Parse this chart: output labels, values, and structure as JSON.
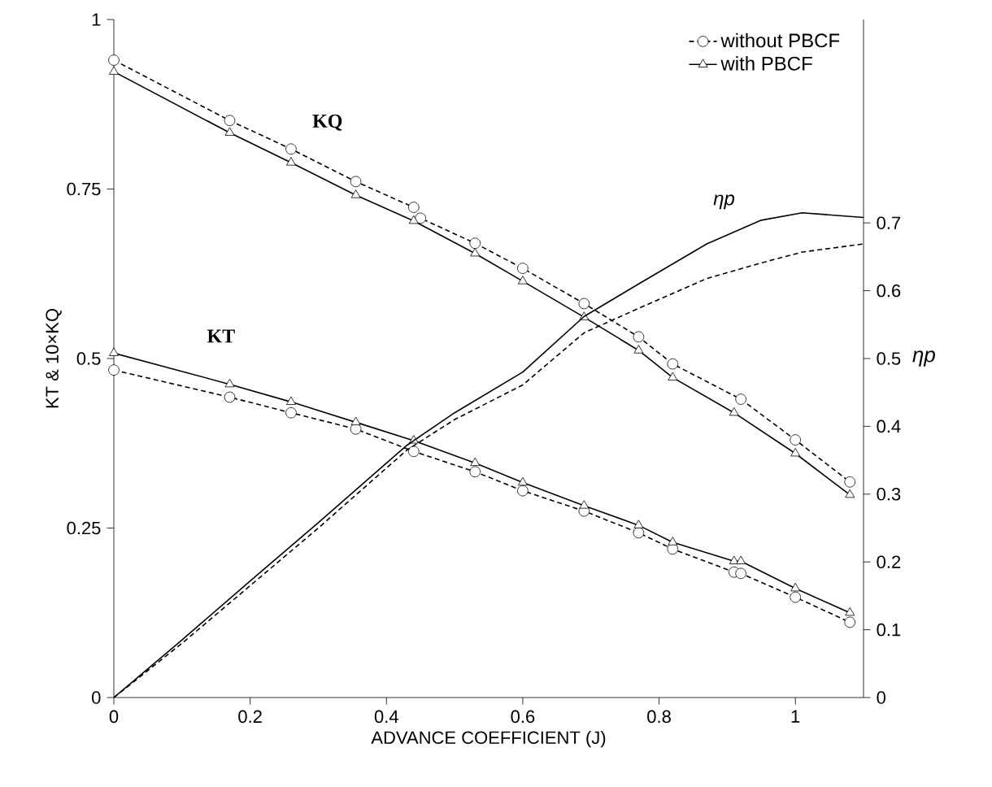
{
  "chart_data": {
    "type": "line",
    "xlabel": "ADVANCE COEFFICIENT (J)",
    "ylabel": "KT & 10×KQ",
    "y2label": "ηp",
    "xlim": [
      0,
      1.1
    ],
    "xticks": [
      0,
      0.2,
      0.4,
      0.6,
      0.8,
      1
    ],
    "ylim": [
      0,
      1
    ],
    "yticks": [
      0,
      0.25,
      0.5,
      0.75,
      1
    ],
    "y2lim": [
      0,
      1
    ],
    "y2ticks": [
      0,
      0.1,
      0.2,
      0.3,
      0.4,
      0.5,
      0.6,
      0.7
    ],
    "legend": "top right",
    "grid": false,
    "series": [
      {
        "name": "without PBCF",
        "color": "#000000",
        "marker": "circle",
        "line_style": "dashed",
        "x": [
          0,
          0.17,
          0.26,
          0.355,
          0.44,
          0.45,
          0.53,
          0.6,
          0.69,
          0.77,
          0.82,
          0.92,
          1.0,
          1.08
        ],
        "values": [
          0.94,
          0.851,
          0.809,
          0.761,
          0.723,
          0.707,
          0.67,
          0.633,
          0.581,
          0.532,
          0.492,
          0.44,
          0.38,
          0.318
        ]
      },
      {
        "name": "with PBCF",
        "color": "#000000",
        "marker": "triangle",
        "line_style": "solid",
        "x": [
          0,
          0.17,
          0.26,
          0.355,
          0.44,
          0.53,
          0.6,
          0.69,
          0.77,
          0.82,
          0.91,
          1.0,
          1.08
        ],
        "values": [
          0.923,
          0.833,
          0.789,
          0.741,
          0.703,
          0.655,
          0.614,
          0.561,
          0.512,
          0.472,
          0.42,
          0.36,
          0.299
        ]
      },
      {
        "color": "#000000",
        "marker": "circle",
        "line_style": "dashed",
        "x": [
          0,
          0.17,
          0.26,
          0.355,
          0.44,
          0.53,
          0.6,
          0.69,
          0.77,
          0.82,
          0.91,
          0.92,
          1.0,
          1.08
        ],
        "values": [
          0.483,
          0.443,
          0.42,
          0.396,
          0.363,
          0.333,
          0.305,
          0.275,
          0.243,
          0.219,
          0.185,
          0.183,
          0.148,
          0.111
        ]
      },
      {
        "color": "#000000",
        "marker": "triangle",
        "line_style": "solid",
        "x": [
          0,
          0.17,
          0.26,
          0.355,
          0.44,
          0.53,
          0.6,
          0.69,
          0.77,
          0.82,
          0.91,
          0.92,
          1.0,
          1.08
        ],
        "values": [
          0.508,
          0.462,
          0.436,
          0.406,
          0.379,
          0.346,
          0.317,
          0.283,
          0.254,
          0.229,
          0.201,
          0.201,
          0.161,
          0.125
        ]
      },
      {
        "color": "#000000",
        "marker": "none",
        "line_style": "dashed",
        "axis": "y2",
        "x": [
          0,
          0.1,
          0.2,
          0.3,
          0.43,
          0.5,
          0.6,
          0.69,
          0.77,
          0.87,
          0.95,
          1.01,
          1.1
        ],
        "values": [
          0,
          0.08,
          0.165,
          0.25,
          0.365,
          0.41,
          0.461,
          0.538,
          0.574,
          0.618,
          0.641,
          0.657,
          0.669
        ]
      },
      {
        "color": "#000000",
        "marker": "none",
        "line_style": "solid",
        "axis": "y2",
        "x": [
          0,
          0.1,
          0.2,
          0.3,
          0.43,
          0.5,
          0.6,
          0.69,
          0.77,
          0.87,
          0.95,
          1.01,
          1.1
        ],
        "values": [
          0,
          0.085,
          0.172,
          0.258,
          0.372,
          0.42,
          0.48,
          0.562,
          0.61,
          0.669,
          0.704,
          0.715,
          0.708
        ]
      }
    ],
    "annotations": [
      "KQ",
      "KT",
      "ηp"
    ]
  }
}
